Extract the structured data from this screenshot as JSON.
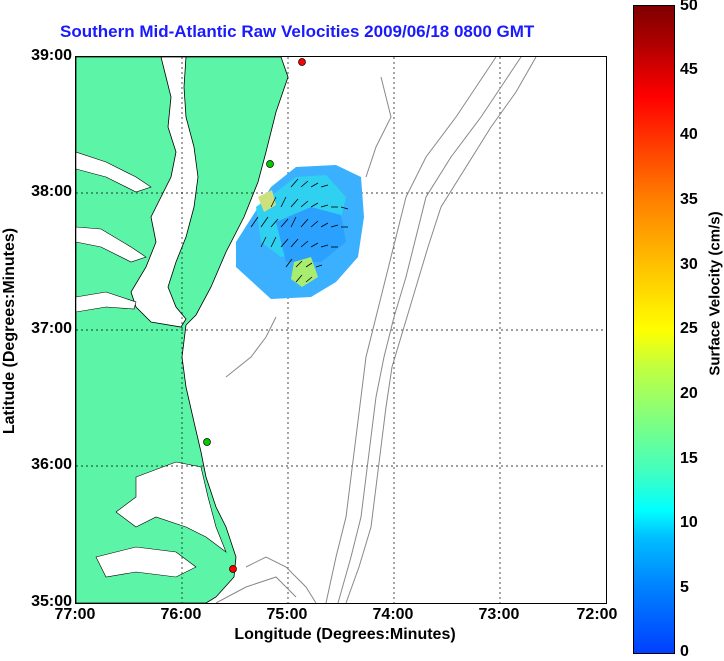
{
  "title": "Southern Mid-Atlantic Raw Velocities 2009/06/18 0800 GMT",
  "x_axis": {
    "label": "Longitude (Degrees:Minutes)",
    "ticks": [
      "77:00",
      "76:00",
      "75:00",
      "74:00",
      "73:00",
      "72:00"
    ]
  },
  "y_axis": {
    "label": "Latitude (Degrees:Minutes)",
    "ticks": [
      "39:00",
      "38:00",
      "37:00",
      "36:00",
      "35:00"
    ]
  },
  "colorbar": {
    "label": "Surface Velocity (cm/s)",
    "ticks": [
      "50",
      "45",
      "40",
      "35",
      "30",
      "25",
      "20",
      "15",
      "10",
      "5",
      "0"
    ],
    "range": [
      0,
      50
    ]
  },
  "map": {
    "lon_range": [
      -77.0,
      -72.0
    ],
    "lat_range": [
      35.0,
      39.0
    ],
    "land_color": "#5cf5a8",
    "contour_color": "#888888",
    "station_markers": [
      {
        "lon": -74.9,
        "lat": 38.98,
        "color": "#ff0000"
      },
      {
        "lon": -75.1,
        "lat": 38.22,
        "color": "#00cc00"
      },
      {
        "lon": -75.72,
        "lat": 36.18,
        "color": "#00cc00"
      },
      {
        "lon": -75.5,
        "lat": 35.25,
        "color": "#ff0000"
      }
    ]
  }
}
